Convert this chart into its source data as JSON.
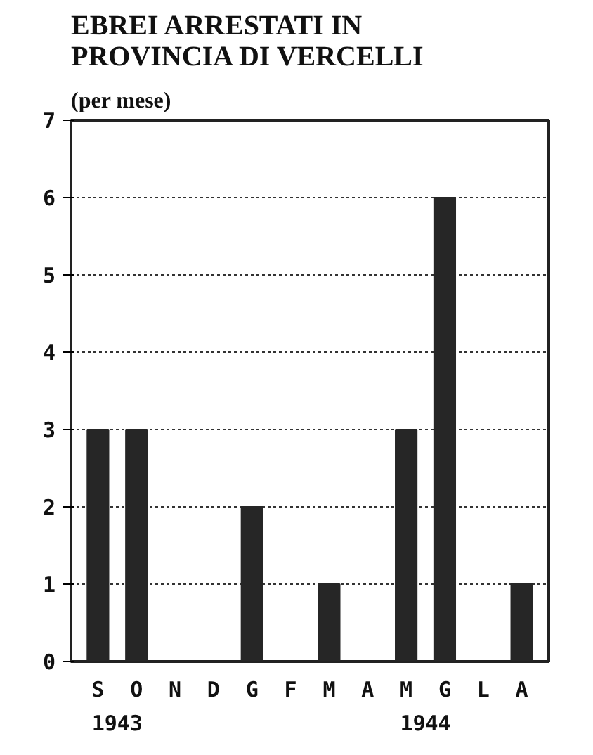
{
  "chart_data": {
    "type": "bar",
    "title": "EBREI ARRESTATI IN\nPROVINCIA DI VERCELLI",
    "subtitle": "(per mese)",
    "categories": [
      "S",
      "O",
      "N",
      "D",
      "G",
      "F",
      "M",
      "A",
      "M",
      "G",
      "L",
      "A"
    ],
    "values": [
      3,
      3,
      0,
      0,
      2,
      0,
      1,
      0,
      3,
      6,
      0,
      1
    ],
    "color": "#262626",
    "ylim": [
      0,
      7
    ],
    "yticks": [
      0,
      1,
      2,
      3,
      4,
      5,
      6,
      7
    ],
    "grid": "y",
    "annotations": [
      "1943",
      "1944"
    ]
  }
}
